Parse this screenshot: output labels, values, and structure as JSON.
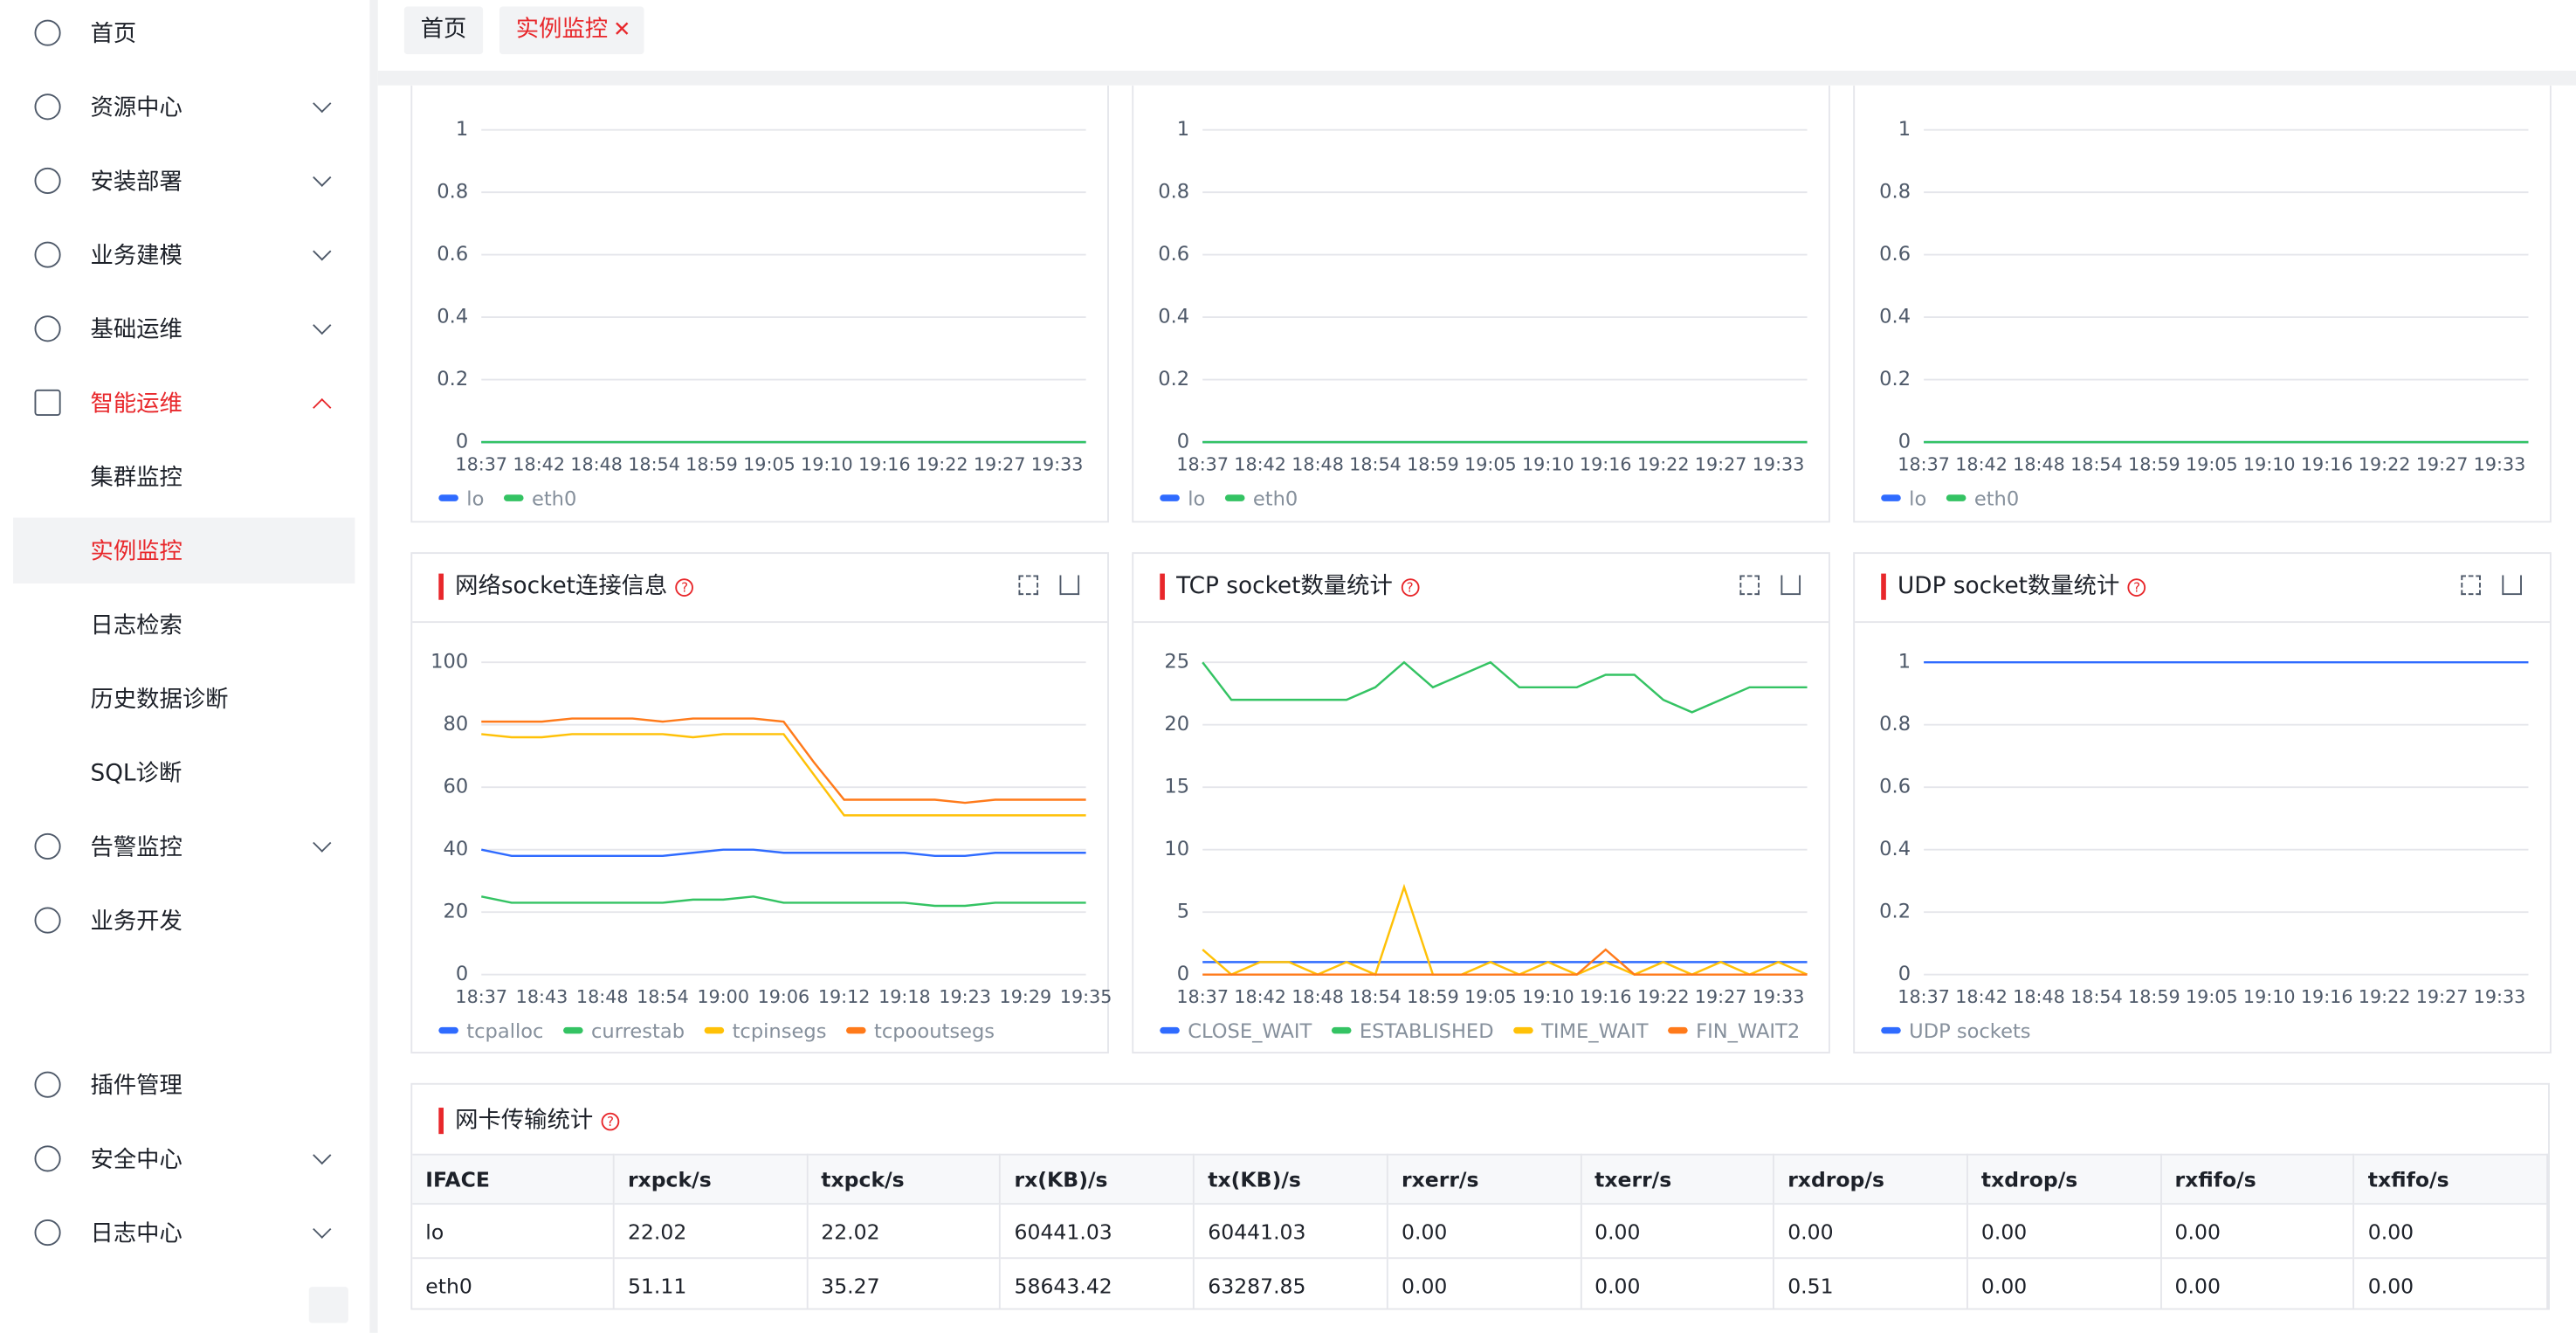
{
  "tabs": [
    "首页",
    "实例监控"
  ],
  "sidebar": {
    "items": [
      "首页",
      "资源中心",
      "安装部署",
      "业务建模",
      "基础运维",
      "智能运维",
      "集群监控",
      "实例监控",
      "日志检索",
      "历史数据诊断",
      "SQL诊断",
      "告警监控",
      "业务开发",
      "插件管理",
      "安全中心",
      "日志中心"
    ]
  },
  "chart_data": [
    {
      "type": "line",
      "categories": [
        "18:37",
        null,
        "18:42",
        null,
        "18:48",
        null,
        "18:54",
        null,
        "18:59",
        null,
        "19:05",
        null,
        "19:10",
        null,
        "19:16",
        null,
        "19:22",
        null,
        "19:27",
        null,
        "19:33",
        null
      ],
      "ylim": [
        0,
        1
      ],
      "yticks": [
        0,
        0.2,
        0.4,
        0.6,
        0.8,
        1
      ],
      "grid": true,
      "series": [
        {
          "name": "lo",
          "color": "#2f6bff",
          "values": [
            0,
            0,
            0,
            0,
            0,
            0,
            0,
            0,
            0,
            0,
            0,
            0,
            0,
            0,
            0,
            0,
            0,
            0,
            0,
            0,
            0,
            0
          ]
        },
        {
          "name": "eth0",
          "color": "#34c363",
          "values": [
            0,
            0,
            0,
            0,
            0,
            0,
            0,
            0,
            0,
            0,
            0,
            0,
            0,
            0,
            0,
            0,
            0,
            0,
            0,
            0,
            0,
            0
          ]
        }
      ]
    },
    {
      "type": "line",
      "categories": [
        "18:37",
        null,
        "18:42",
        null,
        "18:48",
        null,
        "18:54",
        null,
        "18:59",
        null,
        "19:05",
        null,
        "19:10",
        null,
        "19:16",
        null,
        "19:22",
        null,
        "19:27",
        null,
        "19:33",
        null
      ],
      "ylim": [
        0,
        1
      ],
      "yticks": [
        0,
        0.2,
        0.4,
        0.6,
        0.8,
        1
      ],
      "grid": true,
      "series": [
        {
          "name": "lo",
          "color": "#2f6bff",
          "values": [
            0,
            0,
            0,
            0,
            0,
            0,
            0,
            0,
            0,
            0,
            0,
            0,
            0,
            0,
            0,
            0,
            0,
            0,
            0,
            0,
            0,
            0
          ]
        },
        {
          "name": "eth0",
          "color": "#34c363",
          "values": [
            0,
            0,
            0,
            0,
            0,
            0,
            0,
            0,
            0,
            0,
            0,
            0,
            0,
            0,
            0,
            0,
            0,
            0,
            0,
            0,
            0,
            0
          ]
        }
      ]
    },
    {
      "type": "line",
      "categories": [
        "18:37",
        null,
        "18:42",
        null,
        "18:48",
        null,
        "18:54",
        null,
        "18:59",
        null,
        "19:05",
        null,
        "19:10",
        null,
        "19:16",
        null,
        "19:22",
        null,
        "19:27",
        null,
        "19:33",
        null
      ],
      "ylim": [
        0,
        1
      ],
      "yticks": [
        0,
        0.2,
        0.4,
        0.6,
        0.8,
        1
      ],
      "grid": true,
      "series": [
        {
          "name": "lo",
          "color": "#2f6bff",
          "values": [
            0,
            0,
            0,
            0,
            0,
            0,
            0,
            0,
            0,
            0,
            0,
            0,
            0,
            0,
            0,
            0,
            0,
            0,
            0,
            0,
            0,
            0
          ]
        },
        {
          "name": "eth0",
          "color": "#34c363",
          "values": [
            0,
            0,
            0,
            0,
            0,
            0,
            0,
            0,
            0,
            0,
            0,
            0,
            0,
            0,
            0,
            0,
            0,
            0,
            0,
            0,
            0,
            0
          ]
        }
      ]
    },
    {
      "type": "line",
      "title": "网络socket连接信息",
      "categories": [
        "18:37",
        null,
        "18:43",
        null,
        "18:48",
        null,
        "18:54",
        null,
        "19:00",
        null,
        "19:06",
        null,
        "19:12",
        null,
        "19:18",
        null,
        "19:23",
        null,
        "19:29",
        null,
        "19:35"
      ],
      "ylim": [
        0,
        100
      ],
      "yticks": [
        0,
        20,
        40,
        60,
        80,
        100
      ],
      "grid": true,
      "series": [
        {
          "name": "tcpalloc",
          "color": "#2f6bff",
          "values": [
            40,
            38,
            38,
            38,
            38,
            38,
            38,
            39,
            40,
            40,
            39,
            39,
            39,
            39,
            39,
            38,
            38,
            39,
            39,
            39,
            39
          ]
        },
        {
          "name": "currestab",
          "color": "#34c363",
          "values": [
            25,
            23,
            23,
            23,
            23,
            23,
            23,
            24,
            24,
            25,
            23,
            23,
            23,
            23,
            23,
            22,
            22,
            23,
            23,
            23,
            23
          ]
        },
        {
          "name": "tcpinsegs",
          "color": "#ffc107",
          "values": [
            77,
            76,
            76,
            77,
            77,
            77,
            77,
            76,
            77,
            77,
            77,
            64,
            51,
            51,
            51,
            51,
            51,
            51,
            51,
            51,
            51
          ]
        },
        {
          "name": "tcpooutsegs",
          "color": "#ff7a1a",
          "values": [
            81,
            81,
            81,
            82,
            82,
            82,
            81,
            82,
            82,
            82,
            81,
            68,
            56,
            56,
            56,
            56,
            55,
            56,
            56,
            56,
            56
          ]
        }
      ]
    },
    {
      "type": "line",
      "title": "TCP socket数量统计",
      "categories": [
        "18:37",
        null,
        "18:42",
        null,
        "18:48",
        null,
        "18:54",
        null,
        "18:59",
        null,
        "19:05",
        null,
        "19:10",
        null,
        "19:16",
        null,
        "19:22",
        null,
        "19:27",
        null,
        "19:33",
        null
      ],
      "ylim": [
        0,
        25
      ],
      "yticks": [
        0,
        5,
        10,
        15,
        20,
        25
      ],
      "grid": true,
      "series": [
        {
          "name": "CLOSE_WAIT",
          "color": "#2f6bff",
          "values": [
            1,
            1,
            1,
            1,
            1,
            1,
            1,
            1,
            1,
            1,
            1,
            1,
            1,
            1,
            1,
            1,
            1,
            1,
            1,
            1,
            1,
            1
          ]
        },
        {
          "name": "ESTABLISHED",
          "color": "#34c363",
          "values": [
            25,
            22,
            22,
            22,
            22,
            22,
            23,
            25,
            23,
            24,
            25,
            23,
            23,
            23,
            24,
            24,
            22,
            21,
            22,
            23,
            23,
            23
          ]
        },
        {
          "name": "TIME_WAIT",
          "color": "#ffc107",
          "values": [
            2,
            0,
            1,
            1,
            0,
            1,
            0,
            7,
            0,
            0,
            1,
            0,
            1,
            0,
            1,
            0,
            1,
            0,
            1,
            0,
            1,
            0
          ]
        },
        {
          "name": "FIN_WAIT2",
          "color": "#ff7a1a",
          "values": [
            0,
            0,
            0,
            0,
            0,
            0,
            0,
            0,
            0,
            0,
            0,
            0,
            0,
            0,
            2,
            0,
            0,
            0,
            0,
            0,
            0,
            0
          ]
        }
      ]
    },
    {
      "type": "line",
      "title": "UDP socket数量统计",
      "categories": [
        "18:37",
        null,
        "18:42",
        null,
        "18:48",
        null,
        "18:54",
        null,
        "18:59",
        null,
        "19:05",
        null,
        "19:10",
        null,
        "19:16",
        null,
        "19:22",
        null,
        "19:27",
        null,
        "19:33",
        null
      ],
      "ylim": [
        0,
        1
      ],
      "yticks": [
        0,
        0.2,
        0.4,
        0.6,
        0.8,
        1
      ],
      "grid": true,
      "series": [
        {
          "name": "UDP sockets",
          "color": "#2f6bff",
          "values": [
            1,
            1,
            1,
            1,
            1,
            1,
            1,
            1,
            1,
            1,
            1,
            1,
            1,
            1,
            1,
            1,
            1,
            1,
            1,
            1,
            1,
            1
          ]
        }
      ]
    }
  ],
  "table": {
    "title": "网卡传输统计",
    "columns": [
      "IFACE",
      "rxpck/s",
      "txpck/s",
      "rx(KB)/s",
      "tx(KB)/s",
      "rxerr/s",
      "txerr/s",
      "rxdrop/s",
      "txdrop/s",
      "rxfifo/s",
      "txfifo/s"
    ],
    "rows": [
      [
        "lo",
        "22.02",
        "22.02",
        "60441.03",
        "60441.03",
        "0.00",
        "0.00",
        "0.00",
        "0.00",
        "0.00",
        "0.00"
      ],
      [
        "eth0",
        "51.11",
        "35.27",
        "58643.42",
        "63287.85",
        "0.00",
        "0.00",
        "0.51",
        "0.00",
        "0.00",
        "0.00"
      ]
    ]
  }
}
